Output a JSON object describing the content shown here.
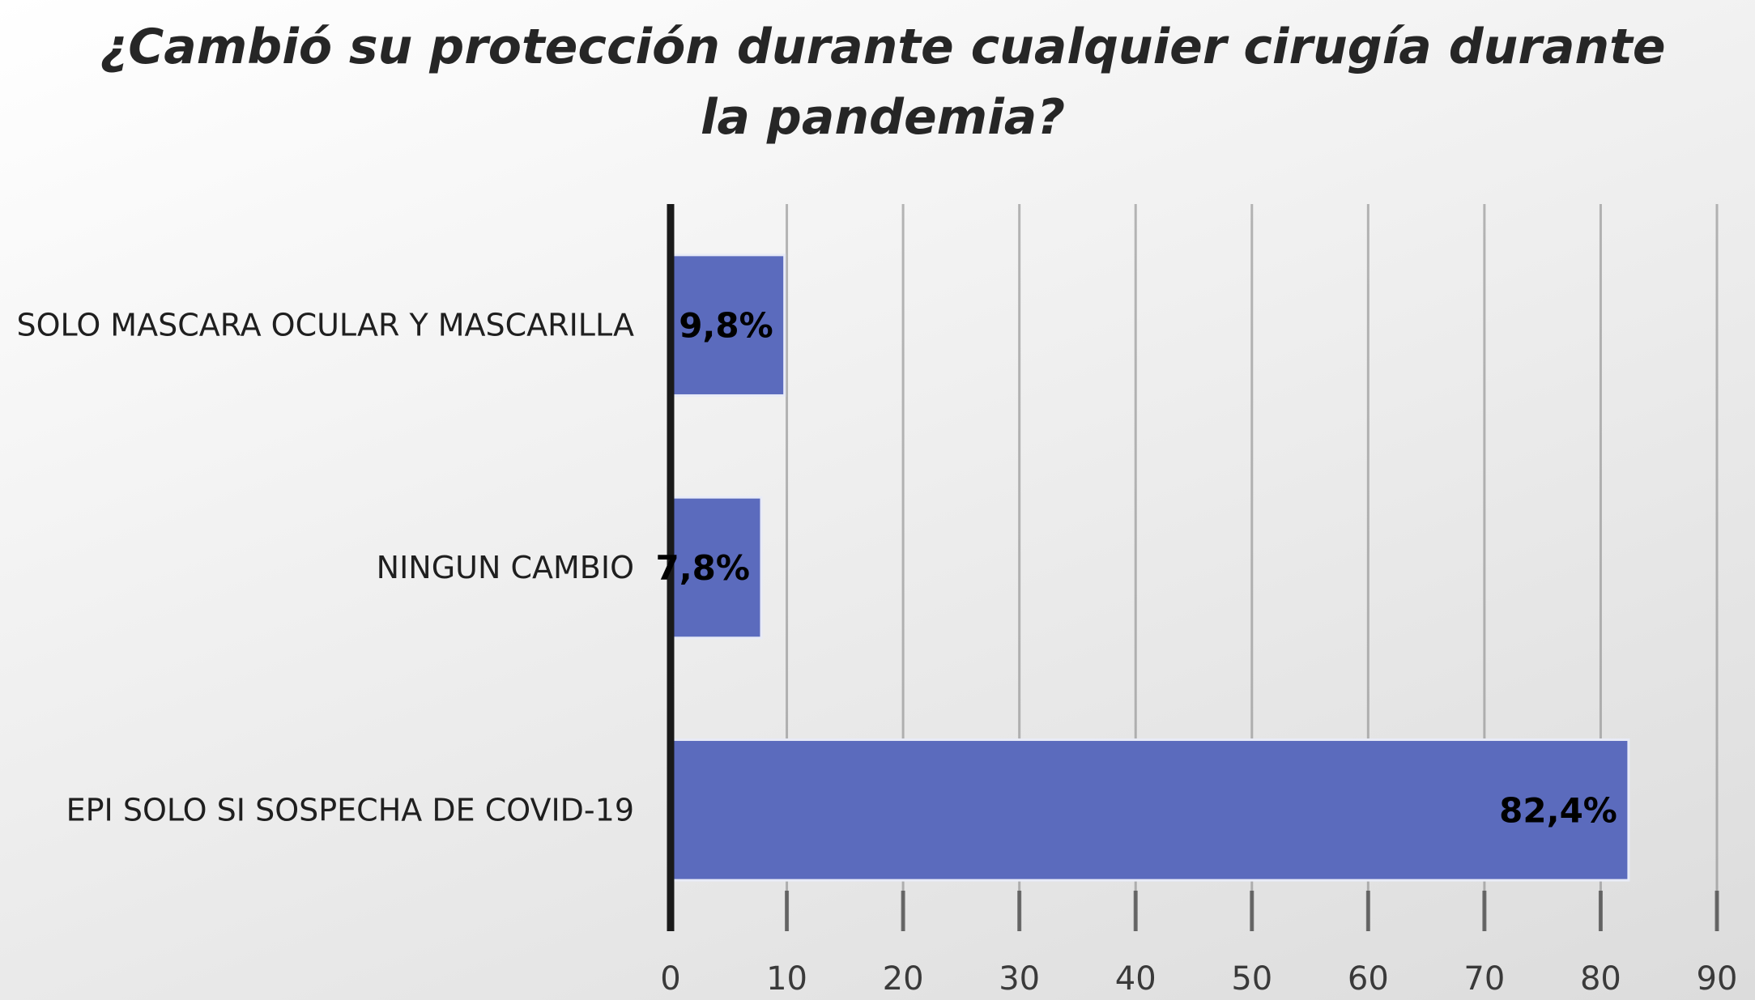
{
  "chart_data": {
    "type": "bar",
    "orientation": "horizontal",
    "title_lines": [
      "¿Cambió  su protección durante cualquier cirugía durante",
      "la pandemia?"
    ],
    "categories": [
      "SOLO MASCARA OCULAR Y MASCARILLA",
      "NINGUN CAMBIO",
      "EPI SOLO SI SOSPECHA DE COVID-19"
    ],
    "values": [
      9.8,
      7.8,
      82.4
    ],
    "data_labels": [
      "9,8%",
      "7,8%",
      "82,4%"
    ],
    "xlim": [
      0,
      90
    ],
    "xticks": [
      0,
      10,
      20,
      30,
      40,
      50,
      60,
      70,
      80,
      90
    ],
    "xtick_labels": [
      "0",
      "10",
      "20",
      "30",
      "40",
      "50",
      "60",
      "70",
      "80",
      "90"
    ],
    "grid": "vertical",
    "legend": "none",
    "colors": {
      "bar": "#5b6bbd",
      "bar_edge": "#e8ebf7",
      "axis": "#1a1a1a",
      "grid": "#8a8a8a"
    }
  }
}
